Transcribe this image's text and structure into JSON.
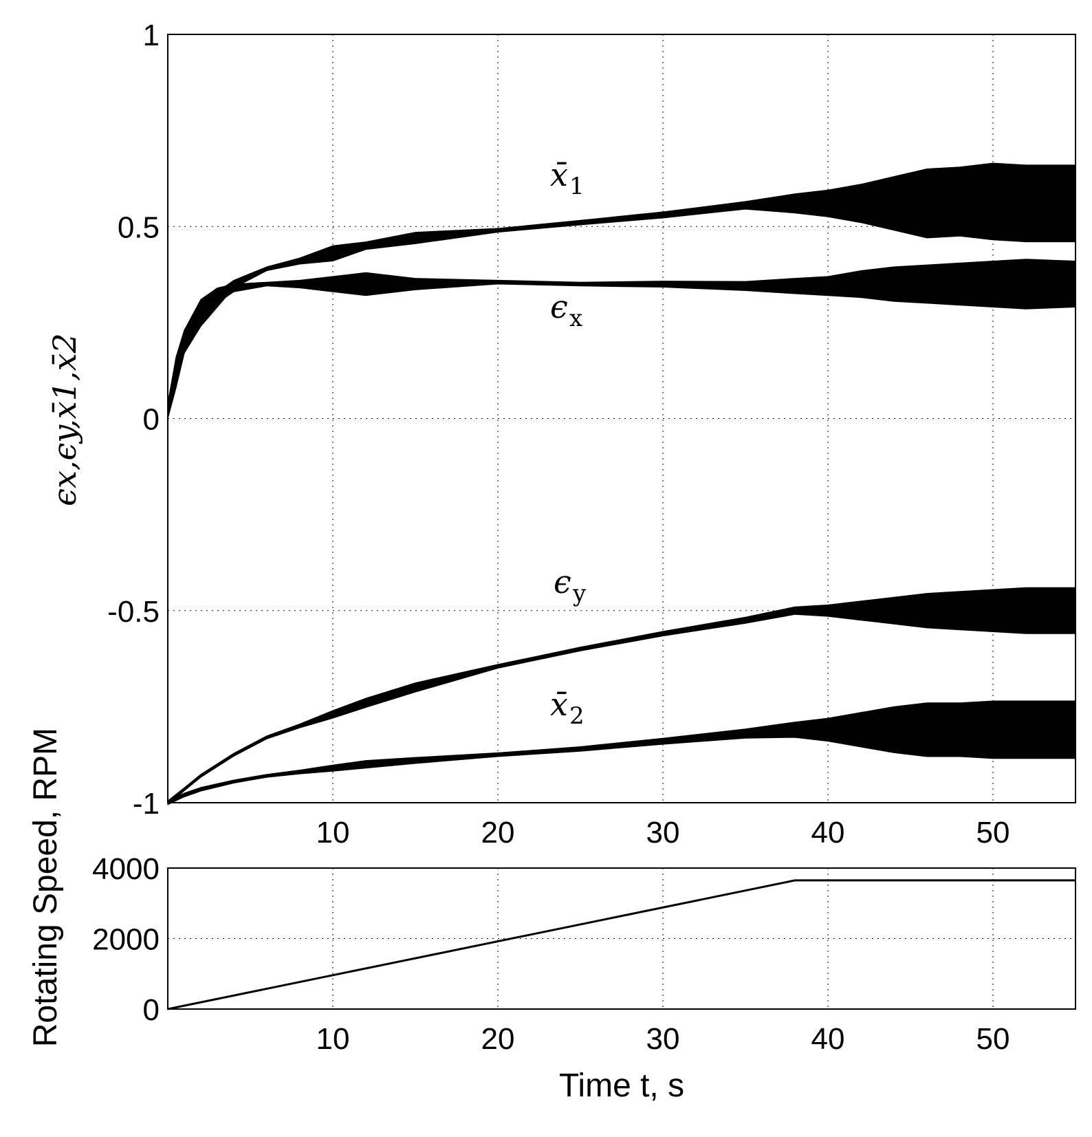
{
  "chart_data": [
    {
      "type": "line",
      "ylabel": "ϵx,ϵy,x̄1,x̄2",
      "xlim": [
        0,
        55
      ],
      "ylim": [
        -1,
        1
      ],
      "grid": true,
      "xticks": [
        "10",
        "20",
        "30",
        "40",
        "50"
      ],
      "yticks": [
        "-1",
        "-0.5",
        "0",
        "0.5",
        "1"
      ],
      "series": [
        {
          "name": "x̄1",
          "label_base": "x̄",
          "label_sub": "1",
          "x": [
            0,
            0.5,
            1,
            2,
            3,
            4,
            6,
            8,
            10,
            12,
            15,
            20,
            25,
            30,
            35,
            38,
            40,
            42,
            44,
            46,
            48,
            50,
            52,
            55
          ],
          "center": [
            0.02,
            0.12,
            0.2,
            0.27,
            0.31,
            0.35,
            0.39,
            0.41,
            0.43,
            0.45,
            0.47,
            0.49,
            0.51,
            0.53,
            0.555,
            0.56,
            0.56,
            0.56,
            0.56,
            0.56,
            0.565,
            0.565,
            0.56,
            0.56
          ],
          "amplitude": [
            0.02,
            0.04,
            0.03,
            0.03,
            0.02,
            0.01,
            0.005,
            0.008,
            0.02,
            0.01,
            0.015,
            0.005,
            0.006,
            0.008,
            0.01,
            0.025,
            0.035,
            0.05,
            0.07,
            0.09,
            0.09,
            0.1,
            0.1,
            0.1
          ]
        },
        {
          "name": "ϵx",
          "label_base": "ϵ",
          "label_sub": "x",
          "x": [
            0,
            0.5,
            1,
            2,
            3,
            4,
            6,
            8,
            10,
            12,
            15,
            20,
            25,
            30,
            35,
            38,
            40,
            42,
            44,
            46,
            48,
            50,
            52,
            55
          ],
          "center": [
            0.02,
            0.12,
            0.2,
            0.28,
            0.32,
            0.34,
            0.35,
            0.35,
            0.35,
            0.35,
            0.35,
            0.355,
            0.35,
            0.35,
            0.345,
            0.345,
            0.345,
            0.35,
            0.35,
            0.35,
            0.35,
            0.35,
            0.35,
            0.35
          ],
          "amplitude": [
            0.02,
            0.04,
            0.03,
            0.03,
            0.02,
            0.01,
            0.005,
            0.01,
            0.02,
            0.03,
            0.015,
            0.005,
            0.005,
            0.008,
            0.012,
            0.02,
            0.025,
            0.035,
            0.045,
            0.05,
            0.055,
            0.06,
            0.065,
            0.06
          ]
        },
        {
          "name": "ϵy",
          "label_base": "ϵ",
          "label_sub": "y",
          "x": [
            0,
            1,
            2,
            4,
            6,
            8,
            10,
            12,
            15,
            20,
            25,
            30,
            35,
            38,
            40,
            42,
            44,
            46,
            48,
            50,
            52,
            55
          ],
          "center": [
            -1.0,
            -0.965,
            -0.93,
            -0.875,
            -0.83,
            -0.8,
            -0.77,
            -0.74,
            -0.7,
            -0.645,
            -0.6,
            -0.56,
            -0.525,
            -0.5,
            -0.5,
            -0.5,
            -0.5,
            -0.5,
            -0.5,
            -0.5,
            -0.5,
            -0.5
          ],
          "amplitude": [
            0.005,
            0.004,
            0.004,
            0.004,
            0.004,
            0.005,
            0.01,
            0.012,
            0.012,
            0.005,
            0.005,
            0.006,
            0.008,
            0.01,
            0.015,
            0.025,
            0.035,
            0.045,
            0.05,
            0.055,
            0.06,
            0.06
          ]
        },
        {
          "name": "x̄2",
          "label_base": "x̄",
          "label_sub": "2",
          "x": [
            0,
            1,
            2,
            4,
            6,
            8,
            10,
            12,
            15,
            20,
            25,
            30,
            35,
            38,
            40,
            42,
            44,
            46,
            48,
            50,
            52,
            55
          ],
          "center": [
            -1.0,
            -0.98,
            -0.965,
            -0.945,
            -0.93,
            -0.92,
            -0.91,
            -0.9,
            -0.89,
            -0.875,
            -0.86,
            -0.84,
            -0.82,
            -0.81,
            -0.81,
            -0.81,
            -0.81,
            -0.81,
            -0.81,
            -0.81,
            -0.81,
            -0.81
          ],
          "amplitude": [
            0.005,
            0.005,
            0.005,
            0.004,
            0.004,
            0.005,
            0.008,
            0.01,
            0.008,
            0.005,
            0.006,
            0.008,
            0.012,
            0.02,
            0.03,
            0.045,
            0.06,
            0.07,
            0.07,
            0.075,
            0.075,
            0.075
          ]
        }
      ]
    },
    {
      "type": "line",
      "xlabel": "Time t, s",
      "ylabel": "Rotating Speed, RPM",
      "xlim": [
        0,
        55
      ],
      "ylim": [
        0,
        4000
      ],
      "grid": true,
      "xticks": [
        "10",
        "20",
        "30",
        "40",
        "50"
      ],
      "yticks": [
        "0",
        "2000",
        "4000"
      ],
      "series": [
        {
          "name": "Rotating Speed",
          "x": [
            0,
            38,
            55
          ],
          "y": [
            0,
            3650,
            3650
          ]
        }
      ]
    }
  ]
}
